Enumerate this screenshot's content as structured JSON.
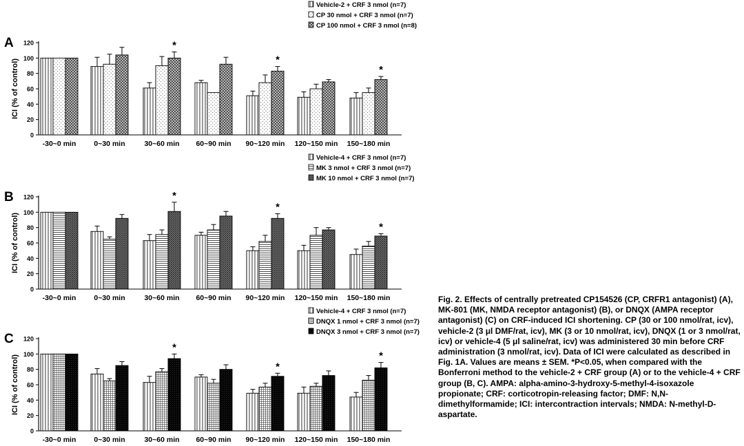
{
  "categories": [
    "-30~0 min",
    "0~30 min",
    "30~60 min",
    "60~90 min",
    "90~120 min",
    "120~150 min",
    "150~180 min"
  ],
  "ylabel": "ICI (% of control)",
  "yticks": [
    "0",
    "20",
    "40",
    "60",
    "80",
    "100",
    "120"
  ],
  "colors": {
    "bar_stroke": "#000000",
    "fill": "#ffffff",
    "dark": "#000000"
  },
  "chart_data": [
    {
      "type": "bar",
      "panel": "A",
      "categories": [
        "-30~0 min",
        "0~30 min",
        "30~60 min",
        "60~90 min",
        "90~120 min",
        "120~150 min",
        "150~180 min"
      ],
      "ylabel": "ICI (% of control)",
      "ylim": [
        0,
        120
      ],
      "legend_position": "top-right",
      "series": [
        {
          "name": "Vehicle-2 + CRF 3 nmol (n=7)",
          "pattern": "vertical-lines",
          "values": [
            100,
            89,
            61,
            68,
            51,
            49,
            48
          ],
          "errors": [
            0,
            12,
            7,
            3,
            6,
            7,
            7
          ],
          "sig": [
            false,
            false,
            false,
            false,
            false,
            false,
            false
          ]
        },
        {
          "name": "CP 30 nmol + CRF 3 nmol (n=7)",
          "pattern": "dots",
          "values": [
            100,
            92,
            90,
            55,
            68,
            60,
            55
          ],
          "errors": [
            0,
            13,
            12,
            0,
            10,
            6,
            6
          ],
          "sig": [
            false,
            false,
            false,
            false,
            false,
            false,
            false
          ]
        },
        {
          "name": "CP 100 nmol + CRF 3 nmol (n=8)",
          "pattern": "crosshatch",
          "values": [
            100,
            104,
            100,
            92,
            83,
            69,
            72
          ],
          "errors": [
            0,
            10,
            8,
            9,
            6,
            3,
            4
          ],
          "sig": [
            false,
            false,
            true,
            false,
            true,
            false,
            true
          ]
        }
      ]
    },
    {
      "type": "bar",
      "panel": "B",
      "categories": [
        "-30~0 min",
        "0~30 min",
        "30~60 min",
        "60~90 min",
        "90~120 min",
        "120~150 min",
        "150~180 min"
      ],
      "ylabel": "ICI (% of control)",
      "ylim": [
        0,
        120
      ],
      "legend_position": "top-right",
      "series": [
        {
          "name": "Vehicle-4 + CRF 3 nmol (n=7)",
          "pattern": "vertical-lines",
          "values": [
            100,
            75,
            63,
            70,
            50,
            50,
            45
          ],
          "errors": [
            0,
            7,
            8,
            4,
            5,
            7,
            7
          ],
          "sig": [
            false,
            false,
            false,
            false,
            false,
            false,
            false
          ]
        },
        {
          "name": "MK 3 nmol + CRF 3 nmol (n=7)",
          "pattern": "horizontal-lines",
          "values": [
            100,
            65,
            71,
            77,
            62,
            70,
            56
          ],
          "errors": [
            0,
            3,
            6,
            7,
            8,
            10,
            6
          ],
          "sig": [
            false,
            false,
            false,
            false,
            false,
            false,
            false
          ]
        },
        {
          "name": "MK 10 nmol + CRF 3 nmol (n=7)",
          "pattern": "dense-crosshatch",
          "values": [
            100,
            92,
            101,
            95,
            92,
            77,
            69
          ],
          "errors": [
            0,
            5,
            12,
            6,
            6,
            3,
            3
          ],
          "sig": [
            false,
            false,
            true,
            false,
            true,
            false,
            true
          ]
        }
      ]
    },
    {
      "type": "bar",
      "panel": "C",
      "categories": [
        "-30~0 min",
        "0~30 min",
        "30~60 min",
        "60~90 min",
        "90~120 min",
        "120~150 min",
        "150~180 min"
      ],
      "ylabel": "ICI (% of control)",
      "ylim": [
        0,
        120
      ],
      "legend_position": "top-right",
      "series": [
        {
          "name": "Vehicle-4 + CRF 3 nmol (n=7)",
          "pattern": "vertical-lines",
          "values": [
            100,
            74,
            63,
            70,
            49,
            49,
            44
          ],
          "errors": [
            0,
            7,
            8,
            3,
            5,
            8,
            6
          ],
          "sig": [
            false,
            false,
            false,
            false,
            false,
            false,
            false
          ]
        },
        {
          "name": "DNQX 1 nmol + CRF 3 nmol (n=7)",
          "pattern": "fine-grid",
          "values": [
            100,
            65,
            77,
            62,
            57,
            58,
            66
          ],
          "errors": [
            0,
            3,
            4,
            5,
            5,
            4,
            6
          ],
          "sig": [
            false,
            false,
            false,
            false,
            false,
            false,
            false
          ]
        },
        {
          "name": "DNQX 3 nmol + CRF 3 nmol (n=7)",
          "pattern": "solid-black",
          "values": [
            100,
            85,
            94,
            80,
            71,
            72,
            82
          ],
          "errors": [
            0,
            5,
            6,
            6,
            4,
            6,
            7
          ],
          "sig": [
            false,
            false,
            true,
            false,
            true,
            false,
            true
          ]
        }
      ]
    }
  ],
  "caption": {
    "fig_label": "Fig. 2.",
    "title": "Effects of centrally pretreated CP154526 (CP, CRFR1 antagonist) (A), MK-801 (MK, NMDA receptor antagonist) (B), or DNQX (AMPA receptor antagonist) (C) on CRF-induced ICI shortening.",
    "body": "CP (30 or 100 nmol/rat, icv), vehicle-2 (3 μl DMF/rat, icv), MK (3 or 10 nmol/rat, icv), DNQX (1 or 3 nmol/rat, icv) or vehicle-4 (5 μl saline/rat, icv) was administered 30 min before CRF administration (3 nmol/rat, icv).  Data of ICI were calculated as described in Fig. 1A.  Values are means ± SEM.",
    "sig_note": "*P<0.05, when compared with the Bonferroni method to the vehicle-2 + CRF group (A) or to the vehicle-4 + CRF group (B, C).",
    "abbreviations": "AMPA: alpha-amino-3-hydroxy-5-methyl-4-isoxazole propionate; CRF: corticotropin-releasing factor; DMF: N,N-dimethylformamide; ICI: intercontraction intervals; NMDA: N-methyl-D-aspartate."
  }
}
